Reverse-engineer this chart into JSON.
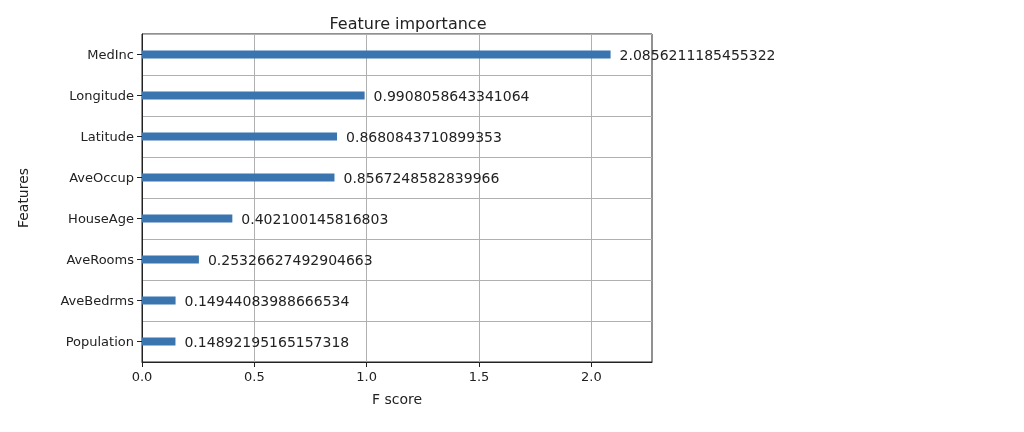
{
  "chart_data": {
    "type": "bar",
    "orientation": "horizontal",
    "title": "Feature importance",
    "xlabel": "F score",
    "ylabel": "Features",
    "categories": [
      "MedInc",
      "Longitude",
      "Latitude",
      "AveOccup",
      "HouseAge",
      "AveRooms",
      "AveBedrms",
      "Population"
    ],
    "values": [
      2.0856211185455322,
      0.9908058643341064,
      0.8680843710899353,
      0.8567248582839966,
      0.402100145816803,
      0.25326627492904663,
      0.14944083988666534,
      0.14892195165157318
    ],
    "value_labels": [
      "2.0856211185455322",
      "0.9908058643341064",
      "0.8680843710899353",
      "0.8567248582839966",
      "0.402100145816803",
      "0.25326627492904663",
      "0.14944083988666534",
      "0.14892195165157318"
    ],
    "color": "#3a75b0",
    "xlim": [
      0,
      2.27
    ],
    "xticks": [
      {
        "value": 0,
        "label": "0.0"
      },
      {
        "value": 0.5,
        "label": "0.5"
      },
      {
        "value": 1,
        "label": "1.0"
      },
      {
        "value": 1.5,
        "label": "1.5"
      },
      {
        "value": 2,
        "label": "2.0"
      }
    ],
    "grid": true
  }
}
